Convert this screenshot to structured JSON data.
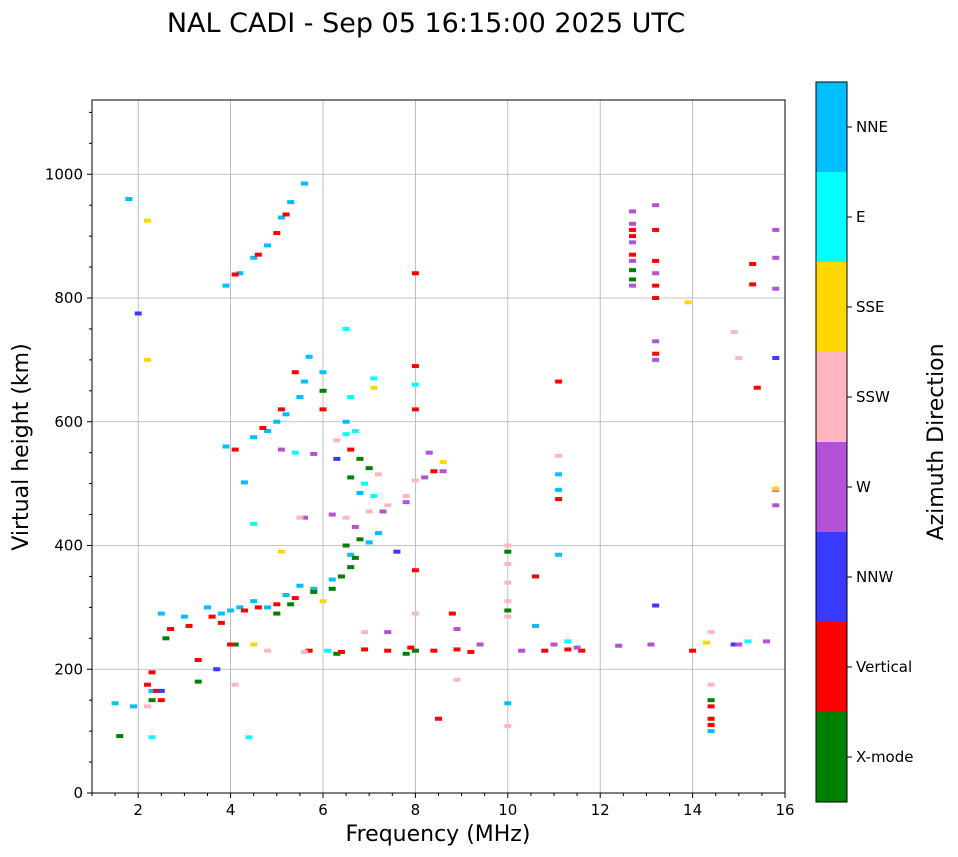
{
  "chart_data": {
    "type": "scatter",
    "title": "NAL CADI - Sep 05 16:15:00 2025 UTC",
    "xlabel": "Frequency (MHz)",
    "ylabel": "Virtual height (km)",
    "xlim": [
      1,
      16
    ],
    "ylim": [
      0,
      1120
    ],
    "xticks": [
      2,
      4,
      6,
      8,
      10,
      12,
      14,
      16
    ],
    "yticks": [
      0,
      200,
      400,
      600,
      800,
      1000
    ],
    "grid": true,
    "colorbar": {
      "title": "Azimuth Direction",
      "categories": [
        {
          "name": "X-mode",
          "color": "#008000"
        },
        {
          "name": "Vertical",
          "color": "#ff0000"
        },
        {
          "name": "NNW",
          "color": "#3a3aff"
        },
        {
          "name": "W",
          "color": "#b452d6"
        },
        {
          "name": "SSW",
          "color": "#ffb6c1"
        },
        {
          "name": "SSE",
          "color": "#ffd700"
        },
        {
          "name": "E",
          "color": "#00ffff"
        },
        {
          "name": "NNE",
          "color": "#00bfff"
        }
      ]
    },
    "series": [
      {
        "name": "NNE",
        "points": [
          [
            1.5,
            145
          ],
          [
            1.9,
            140
          ],
          [
            2.3,
            165
          ],
          [
            2.5,
            290
          ],
          [
            3.0,
            285
          ],
          [
            3.5,
            300
          ],
          [
            3.8,
            290
          ],
          [
            4.0,
            295
          ],
          [
            4.2,
            300
          ],
          [
            4.5,
            310
          ],
          [
            4.8,
            300
          ],
          [
            5.2,
            320
          ],
          [
            5.5,
            335
          ],
          [
            5.8,
            330
          ],
          [
            6.2,
            345
          ],
          [
            6.6,
            385
          ],
          [
            7.0,
            405
          ],
          [
            7.2,
            420
          ],
          [
            3.9,
            560
          ],
          [
            4.5,
            575
          ],
          [
            4.8,
            585
          ],
          [
            5.0,
            600
          ],
          [
            5.2,
            612
          ],
          [
            5.5,
            640
          ],
          [
            5.6,
            665
          ],
          [
            5.7,
            705
          ],
          [
            3.9,
            820
          ],
          [
            4.2,
            840
          ],
          [
            4.5,
            865
          ],
          [
            4.8,
            885
          ],
          [
            5.1,
            930
          ],
          [
            5.3,
            955
          ],
          [
            5.6,
            985
          ],
          [
            1.8,
            960
          ],
          [
            6.0,
            680
          ],
          [
            6.5,
            600
          ],
          [
            6.8,
            485
          ],
          [
            10.6,
            270
          ],
          [
            11.1,
            515
          ],
          [
            11.1,
            490
          ],
          [
            11.1,
            385
          ],
          [
            14.4,
            100
          ],
          [
            10.0,
            145
          ],
          [
            4.3,
            502
          ]
        ]
      },
      {
        "name": "X-mode",
        "points": [
          [
            1.6,
            92
          ],
          [
            2.3,
            150
          ],
          [
            2.6,
            250
          ],
          [
            3.3,
            180
          ],
          [
            4.1,
            240
          ],
          [
            5.0,
            290
          ],
          [
            5.3,
            305
          ],
          [
            5.8,
            325
          ],
          [
            6.2,
            330
          ],
          [
            6.4,
            350
          ],
          [
            6.6,
            365
          ],
          [
            6.7,
            380
          ],
          [
            6.5,
            400
          ],
          [
            6.0,
            650
          ],
          [
            6.8,
            540
          ],
          [
            6.8,
            410
          ],
          [
            10.0,
            390
          ],
          [
            10.0,
            295
          ],
          [
            12.7,
            830
          ],
          [
            12.7,
            845
          ],
          [
            14.4,
            150
          ],
          [
            8.0,
            230
          ],
          [
            7.0,
            525
          ],
          [
            6.6,
            510
          ],
          [
            6.3,
            225
          ],
          [
            7.8,
            225
          ]
        ]
      },
      {
        "name": "Vertical",
        "points": [
          [
            2.2,
            175
          ],
          [
            2.3,
            195
          ],
          [
            2.4,
            165
          ],
          [
            2.5,
            150
          ],
          [
            2.7,
            265
          ],
          [
            3.1,
            270
          ],
          [
            3.3,
            215
          ],
          [
            3.6,
            285
          ],
          [
            3.8,
            275
          ],
          [
            4.0,
            240
          ],
          [
            4.3,
            295
          ],
          [
            4.6,
            300
          ],
          [
            5.0,
            305
          ],
          [
            5.4,
            315
          ],
          [
            5.7,
            230
          ],
          [
            6.4,
            228
          ],
          [
            6.9,
            232
          ],
          [
            7.4,
            230
          ],
          [
            7.9,
            235
          ],
          [
            8.4,
            230
          ],
          [
            8.9,
            232
          ],
          [
            9.2,
            228
          ],
          [
            4.1,
            555
          ],
          [
            4.7,
            590
          ],
          [
            5.1,
            620
          ],
          [
            5.4,
            680
          ],
          [
            4.1,
            838
          ],
          [
            4.6,
            870
          ],
          [
            5.0,
            905
          ],
          [
            5.2,
            935
          ],
          [
            6.6,
            555
          ],
          [
            8.4,
            520
          ],
          [
            8.8,
            290
          ],
          [
            10.6,
            350
          ],
          [
            10.8,
            230
          ],
          [
            11.3,
            232
          ],
          [
            11.6,
            230
          ],
          [
            12.7,
            900
          ],
          [
            12.7,
            870
          ],
          [
            13.2,
            860
          ],
          [
            13.2,
            820
          ],
          [
            13.2,
            800
          ],
          [
            13.2,
            710
          ],
          [
            15.3,
            855
          ],
          [
            15.3,
            822
          ],
          [
            15.4,
            655
          ],
          [
            14.4,
            140
          ],
          [
            14.4,
            120
          ],
          [
            14.4,
            110
          ],
          [
            14.0,
            230
          ],
          [
            8.0,
            840
          ],
          [
            8.0,
            690
          ],
          [
            8.0,
            620
          ],
          [
            8.0,
            360
          ],
          [
            8.5,
            120
          ],
          [
            11.1,
            665
          ],
          [
            11.1,
            475
          ],
          [
            6.0,
            620
          ],
          [
            13.2,
            910
          ],
          [
            12.7,
            910
          ]
        ]
      },
      {
        "name": "NNW",
        "points": [
          [
            13.2,
            303
          ],
          [
            15.8,
            703
          ],
          [
            6.3,
            540
          ],
          [
            2.0,
            775
          ],
          [
            2.5,
            165
          ],
          [
            3.7,
            200
          ],
          [
            14.9,
            240
          ],
          [
            7.6,
            390
          ]
        ]
      },
      {
        "name": "W",
        "points": [
          [
            12.7,
            940
          ],
          [
            12.7,
            920
          ],
          [
            12.7,
            890
          ],
          [
            12.7,
            860
          ],
          [
            12.7,
            820
          ],
          [
            13.2,
            950
          ],
          [
            13.2,
            840
          ],
          [
            13.2,
            730
          ],
          [
            13.2,
            700
          ],
          [
            15.8,
            910
          ],
          [
            15.8,
            865
          ],
          [
            15.8,
            815
          ],
          [
            15.8,
            490
          ],
          [
            15.8,
            465
          ],
          [
            8.2,
            510
          ],
          [
            8.3,
            550
          ],
          [
            8.6,
            520
          ],
          [
            9.4,
            240
          ],
          [
            8.9,
            265
          ],
          [
            10.3,
            230
          ],
          [
            11.0,
            240
          ],
          [
            11.5,
            235
          ],
          [
            12.4,
            238
          ],
          [
            13.1,
            240
          ],
          [
            15.0,
            240
          ],
          [
            15.6,
            245
          ],
          [
            5.6,
            445
          ],
          [
            6.2,
            450
          ],
          [
            7.3,
            455
          ],
          [
            7.8,
            470
          ],
          [
            7.4,
            260
          ],
          [
            5.8,
            548
          ],
          [
            5.1,
            555
          ],
          [
            6.7,
            430
          ]
        ]
      },
      {
        "name": "SSW",
        "points": [
          [
            10.0,
            400
          ],
          [
            10.0,
            370
          ],
          [
            10.0,
            340
          ],
          [
            10.0,
            310
          ],
          [
            10.0,
            285
          ],
          [
            8.9,
            183
          ],
          [
            4.1,
            175
          ],
          [
            6.5,
            445
          ],
          [
            7.0,
            455
          ],
          [
            7.4,
            465
          ],
          [
            7.8,
            480
          ],
          [
            8.0,
            505
          ],
          [
            7.2,
            515
          ],
          [
            14.4,
            260
          ],
          [
            14.4,
            175
          ],
          [
            14.9,
            745
          ],
          [
            15.0,
            703
          ],
          [
            6.3,
            570
          ],
          [
            5.5,
            445
          ],
          [
            10.0,
            108
          ],
          [
            8.0,
            290
          ],
          [
            11.1,
            545
          ],
          [
            4.8,
            230
          ],
          [
            6.9,
            260
          ],
          [
            2.2,
            140
          ],
          [
            5.6,
            228
          ]
        ]
      },
      {
        "name": "SSE",
        "points": [
          [
            2.2,
            925
          ],
          [
            2.2,
            700
          ],
          [
            5.1,
            390
          ],
          [
            4.5,
            240
          ],
          [
            13.9,
            793
          ],
          [
            14.3,
            243
          ],
          [
            15.8,
            492
          ],
          [
            7.1,
            655
          ],
          [
            8.6,
            535
          ],
          [
            6.0,
            310
          ]
        ]
      },
      {
        "name": "E",
        "points": [
          [
            2.3,
            90
          ],
          [
            4.4,
            90
          ],
          [
            6.5,
            750
          ],
          [
            6.5,
            580
          ],
          [
            6.7,
            585
          ],
          [
            6.9,
            500
          ],
          [
            7.1,
            480
          ],
          [
            7.1,
            670
          ],
          [
            6.1,
            230
          ],
          [
            4.5,
            435
          ],
          [
            15.2,
            245
          ],
          [
            11.3,
            245
          ],
          [
            6.6,
            640
          ],
          [
            5.4,
            550
          ],
          [
            8.0,
            660
          ]
        ]
      }
    ]
  }
}
